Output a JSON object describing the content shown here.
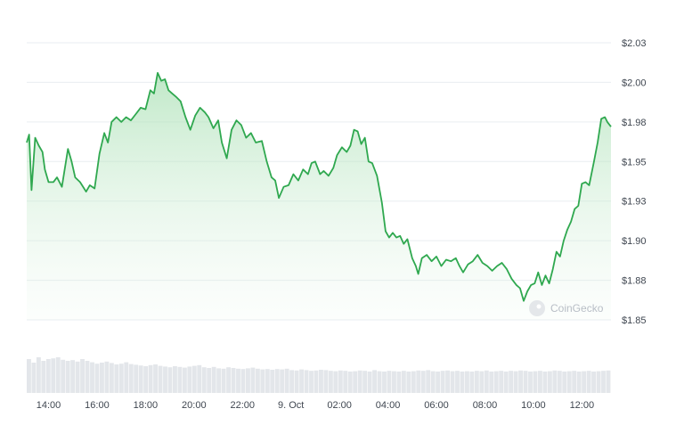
{
  "chart_data": {
    "type": "area",
    "title": "",
    "xlabel": "",
    "ylabel": "",
    "y_ticks": [
      "$2.03",
      "$2.00",
      "$1.98",
      "$1.95",
      "$1.93",
      "$1.90",
      "$1.88",
      "$1.85"
    ],
    "y_tick_values": [
      2.025,
      2.0,
      1.975,
      1.95,
      1.925,
      1.9,
      1.875,
      1.85
    ],
    "ylim": [
      1.85,
      2.025
    ],
    "x_ticks": [
      "14:00",
      "16:00",
      "18:00",
      "20:00",
      "22:00",
      "9. Oct",
      "02:00",
      "04:00",
      "06:00",
      "08:00",
      "10:00",
      "12:00"
    ],
    "x_tick_hours": [
      14,
      16,
      18,
      20,
      22,
      24,
      26,
      28,
      30,
      32,
      34,
      36
    ],
    "x_unit": "hours (8 Oct 00:00 = 0; 9 Oct 00:00 = 24)",
    "xlim": [
      13.1,
      37.2
    ],
    "grid": true,
    "line_color": "#2fa84f",
    "fill_color_top": "#bfe8c7",
    "watermark": "CoinGecko",
    "series": [
      {
        "values": [
          [
            13.1,
            1.962
          ],
          [
            13.2,
            1.967
          ],
          [
            13.3,
            1.932
          ],
          [
            13.45,
            1.965
          ],
          [
            13.6,
            1.96
          ],
          [
            13.75,
            1.956
          ],
          [
            13.85,
            1.945
          ],
          [
            14.0,
            1.937
          ],
          [
            14.2,
            1.937
          ],
          [
            14.35,
            1.94
          ],
          [
            14.55,
            1.934
          ],
          [
            14.8,
            1.958
          ],
          [
            14.95,
            1.95
          ],
          [
            15.1,
            1.94
          ],
          [
            15.3,
            1.937
          ],
          [
            15.55,
            1.931
          ],
          [
            15.7,
            1.935
          ],
          [
            15.9,
            1.933
          ],
          [
            16.1,
            1.955
          ],
          [
            16.3,
            1.968
          ],
          [
            16.45,
            1.962
          ],
          [
            16.6,
            1.975
          ],
          [
            16.8,
            1.978
          ],
          [
            17.0,
            1.975
          ],
          [
            17.2,
            1.978
          ],
          [
            17.4,
            1.976
          ],
          [
            17.6,
            1.98
          ],
          [
            17.8,
            1.984
          ],
          [
            18.0,
            1.983
          ],
          [
            18.2,
            1.995
          ],
          [
            18.35,
            1.993
          ],
          [
            18.5,
            2.006
          ],
          [
            18.65,
            2.001
          ],
          [
            18.8,
            2.002
          ],
          [
            18.95,
            1.995
          ],
          [
            19.1,
            1.993
          ],
          [
            19.25,
            1.991
          ],
          [
            19.45,
            1.988
          ],
          [
            19.65,
            1.978
          ],
          [
            19.85,
            1.97
          ],
          [
            20.05,
            1.979
          ],
          [
            20.25,
            1.984
          ],
          [
            20.45,
            1.981
          ],
          [
            20.6,
            1.978
          ],
          [
            20.8,
            1.971
          ],
          [
            21.0,
            1.976
          ],
          [
            21.15,
            1.962
          ],
          [
            21.35,
            1.952
          ],
          [
            21.55,
            1.97
          ],
          [
            21.75,
            1.976
          ],
          [
            21.95,
            1.973
          ],
          [
            22.15,
            1.965
          ],
          [
            22.35,
            1.968
          ],
          [
            22.55,
            1.962
          ],
          [
            22.8,
            1.963
          ],
          [
            23.0,
            1.95
          ],
          [
            23.2,
            1.94
          ],
          [
            23.35,
            1.938
          ],
          [
            23.5,
            1.927
          ],
          [
            23.7,
            1.934
          ],
          [
            23.9,
            1.935
          ],
          [
            24.1,
            1.942
          ],
          [
            24.3,
            1.938
          ],
          [
            24.5,
            1.945
          ],
          [
            24.7,
            1.942
          ],
          [
            24.85,
            1.949
          ],
          [
            25.0,
            1.95
          ],
          [
            25.2,
            1.942
          ],
          [
            25.35,
            1.944
          ],
          [
            25.55,
            1.941
          ],
          [
            25.75,
            1.946
          ],
          [
            25.9,
            1.954
          ],
          [
            26.1,
            1.959
          ],
          [
            26.3,
            1.956
          ],
          [
            26.45,
            1.96
          ],
          [
            26.6,
            1.97
          ],
          [
            26.75,
            1.969
          ],
          [
            26.9,
            1.961
          ],
          [
            27.05,
            1.965
          ],
          [
            27.2,
            1.95
          ],
          [
            27.35,
            1.949
          ],
          [
            27.55,
            1.941
          ],
          [
            27.75,
            1.924
          ],
          [
            27.9,
            1.906
          ],
          [
            28.05,
            1.902
          ],
          [
            28.2,
            1.905
          ],
          [
            28.35,
            1.902
          ],
          [
            28.5,
            1.903
          ],
          [
            28.65,
            1.898
          ],
          [
            28.8,
            1.901
          ],
          [
            29.0,
            1.889
          ],
          [
            29.15,
            1.884
          ],
          [
            29.25,
            1.879
          ],
          [
            29.4,
            1.889
          ],
          [
            29.6,
            1.891
          ],
          [
            29.8,
            1.887
          ],
          [
            30.0,
            1.89
          ],
          [
            30.2,
            1.884
          ],
          [
            30.4,
            1.888
          ],
          [
            30.6,
            1.887
          ],
          [
            30.8,
            1.889
          ],
          [
            30.95,
            1.884
          ],
          [
            31.1,
            1.88
          ],
          [
            31.3,
            1.885
          ],
          [
            31.5,
            1.887
          ],
          [
            31.7,
            1.891
          ],
          [
            31.9,
            1.886
          ],
          [
            32.1,
            1.884
          ],
          [
            32.3,
            1.881
          ],
          [
            32.5,
            1.884
          ],
          [
            32.7,
            1.886
          ],
          [
            32.9,
            1.882
          ],
          [
            33.1,
            1.876
          ],
          [
            33.3,
            1.872
          ],
          [
            33.45,
            1.87
          ],
          [
            33.6,
            1.862
          ],
          [
            33.75,
            1.868
          ],
          [
            33.9,
            1.872
          ],
          [
            34.05,
            1.873
          ],
          [
            34.2,
            1.88
          ],
          [
            34.35,
            1.872
          ],
          [
            34.5,
            1.878
          ],
          [
            34.65,
            1.873
          ],
          [
            34.8,
            1.882
          ],
          [
            34.95,
            1.893
          ],
          [
            35.1,
            1.89
          ],
          [
            35.25,
            1.9
          ],
          [
            35.4,
            1.907
          ],
          [
            35.55,
            1.912
          ],
          [
            35.7,
            1.92
          ],
          [
            35.85,
            1.922
          ],
          [
            36.0,
            1.936
          ],
          [
            36.15,
            1.937
          ],
          [
            36.3,
            1.935
          ],
          [
            36.5,
            1.95
          ],
          [
            36.65,
            1.962
          ],
          [
            36.8,
            1.977
          ],
          [
            36.95,
            1.978
          ],
          [
            37.05,
            1.975
          ],
          [
            37.2,
            1.972
          ]
        ]
      }
    ],
    "volume": [
      0.95,
      0.85,
      1.0,
      0.9,
      0.95,
      0.97,
      1.0,
      0.93,
      0.9,
      0.92,
      0.88,
      0.95,
      0.9,
      0.86,
      0.82,
      0.85,
      0.88,
      0.84,
      0.8,
      0.82,
      0.86,
      0.81,
      0.79,
      0.77,
      0.75,
      0.78,
      0.8,
      0.76,
      0.74,
      0.72,
      0.75,
      0.73,
      0.71,
      0.74,
      0.76,
      0.78,
      0.72,
      0.7,
      0.73,
      0.69,
      0.68,
      0.72,
      0.7,
      0.68,
      0.67,
      0.69,
      0.71,
      0.68,
      0.66,
      0.67,
      0.65,
      0.67,
      0.66,
      0.68,
      0.64,
      0.63,
      0.66,
      0.64,
      0.62,
      0.63,
      0.65,
      0.64,
      0.62,
      0.61,
      0.63,
      0.62,
      0.6,
      0.61,
      0.63,
      0.62,
      0.6,
      0.64,
      0.61,
      0.6,
      0.62,
      0.61,
      0.6,
      0.62,
      0.6,
      0.61,
      0.63,
      0.62,
      0.64,
      0.61,
      0.6,
      0.62,
      0.63,
      0.61,
      0.62,
      0.6,
      0.61,
      0.6,
      0.62,
      0.61,
      0.63,
      0.6,
      0.61,
      0.62,
      0.6,
      0.62,
      0.61,
      0.63,
      0.62,
      0.6,
      0.61,
      0.62,
      0.6,
      0.61,
      0.63,
      0.62,
      0.6,
      0.61,
      0.62,
      0.6,
      0.61,
      0.62,
      0.6,
      0.61,
      0.62,
      0.63
    ]
  }
}
